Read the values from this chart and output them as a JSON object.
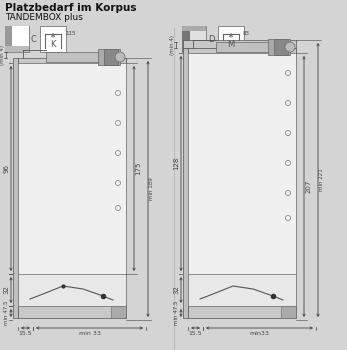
{
  "title_bold": "Platzbedarf im Korpus",
  "title_normal": "TANDEMBOX plus",
  "bg_color": "#d4d4d4",
  "white": "#ffffff",
  "gray_light": "#c8c8c8",
  "gray_mid": "#aaaaaa",
  "gray_dark": "#888888",
  "line_color": "#555555",
  "dim_color": "#444444",
  "left_C": "C",
  "left_K": "K",
  "left_num": "115",
  "right_D": "D",
  "right_M": "M",
  "right_num": "83",
  "figw": 3.47,
  "figh": 3.5,
  "dpi": 100
}
